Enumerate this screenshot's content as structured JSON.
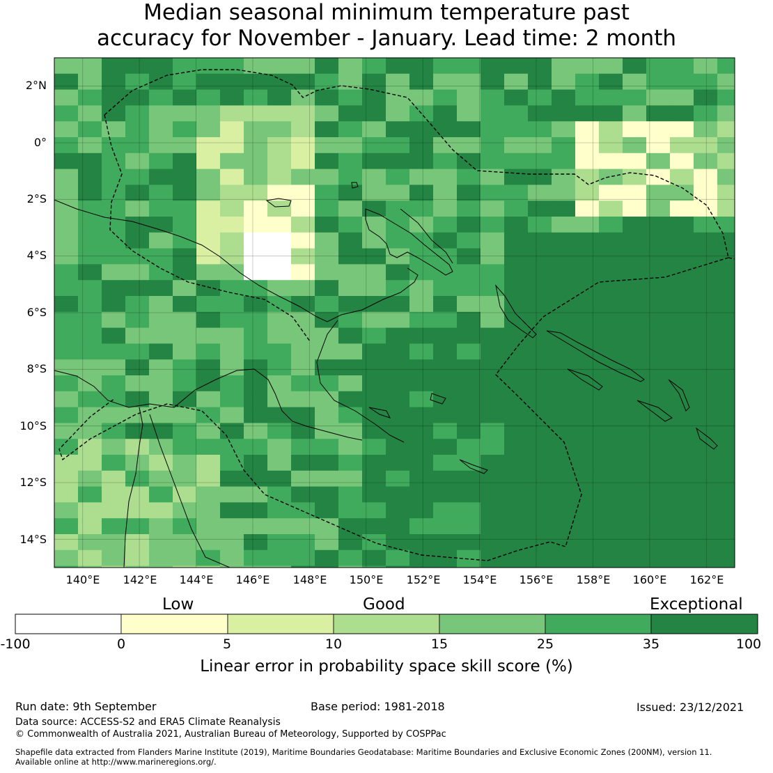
{
  "title": {
    "line1": "Median seasonal minimum temperature past",
    "line2": "accuracy for November - January. Lead time: 2 month"
  },
  "map": {
    "lat_ticks": [
      "2°N",
      "0°",
      "2°S",
      "4°S",
      "6°S",
      "8°S",
      "10°S",
      "12°S",
      "14°S"
    ],
    "lon_ticks": [
      "140°E",
      "142°E",
      "144°E",
      "146°E",
      "148°E",
      "150°E",
      "152°E",
      "154°E",
      "156°E",
      "158°E",
      "160°E",
      "162°E"
    ],
    "lon_range": [
      139,
      163
    ],
    "lat_range": [
      -15,
      3
    ]
  },
  "legend": {
    "categories": [
      "Low",
      "Good",
      "Exceptional"
    ],
    "tick_labels": [
      "-100",
      "0",
      "5",
      "10",
      "15",
      "25",
      "35",
      "100"
    ],
    "colors": [
      "#ffffff",
      "#ffffcc",
      "#d9f0a3",
      "#addd8e",
      "#78c679",
      "#41ab5d",
      "#238443"
    ],
    "axis_label": "Linear error in probability space skill score (%)"
  },
  "footer": {
    "run_date": "Run date: 9th September",
    "base_period": "Base period: 1981-2018",
    "issued": "Issued: 23/12/2021",
    "data_source": "Data source: ACCESS-S2 and ERA5 Climate Reanalysis",
    "copyright": "© Commonwealth of Australia 2021, Australian Bureau of Meteorology, Supported by COSPPac",
    "shapefile_line1": "Shapefile data extracted from Flanders Marine Institute (2019), Maritime Boundaries Geodatabase: Maritime Boundaries and Exclusive Economic Zones (200NM), version 11.",
    "shapefile_line2": "Available online at http://www.marineregions.org/."
  }
}
